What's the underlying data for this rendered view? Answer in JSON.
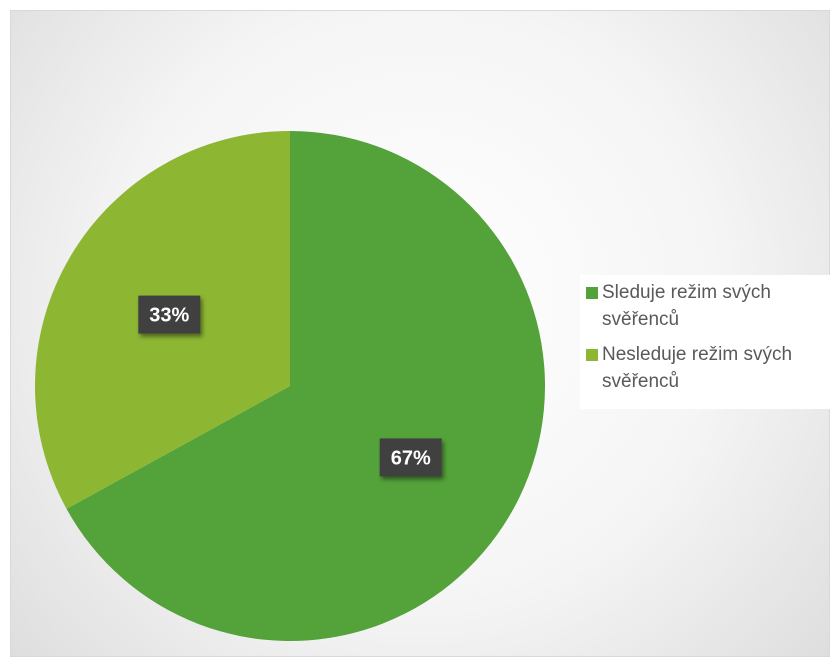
{
  "chart_data": {
    "type": "pie",
    "title": "",
    "categories": [
      "Sleduje režim svých svěřenců",
      "Nesleduje režim svých svěřenců"
    ],
    "values": [
      67,
      33
    ],
    "data_labels": [
      "67%",
      "33%"
    ],
    "colors": [
      "#54A23A",
      "#8DB633"
    ],
    "legend_position": "right",
    "start_angle": "12 o'clock",
    "direction": "clockwise",
    "data_label_style": "white bold text on dark box with shadow"
  }
}
